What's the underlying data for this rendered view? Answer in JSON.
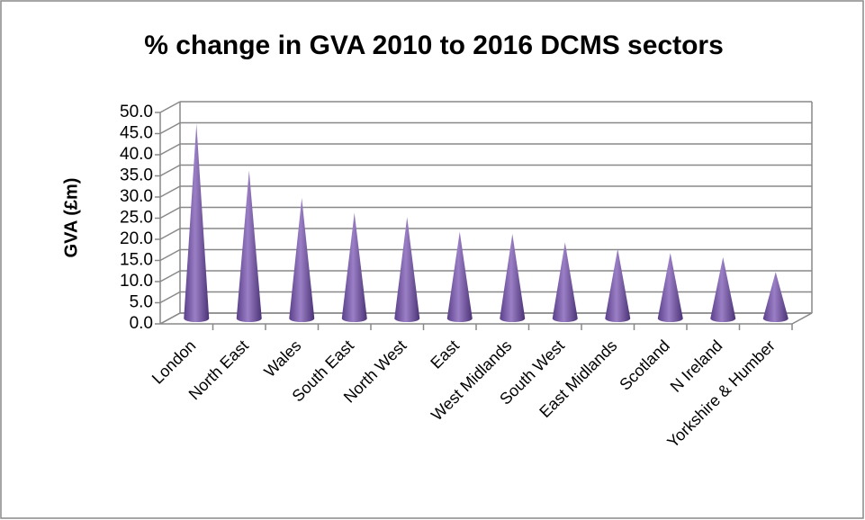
{
  "chart_data": {
    "type": "cone",
    "title": "% change in GVA 2010 to 2016 DCMS sectors",
    "y_label": "GVA (£m)",
    "categories": [
      "London",
      "North East",
      "Wales",
      "South East",
      "North West",
      "East",
      "West Midlands",
      "South West",
      "East Midlands",
      "Scotland",
      "N Ireland",
      "Yorkshire & Humber"
    ],
    "values": [
      46,
      35,
      28.5,
      25,
      24,
      20.5,
      20,
      18,
      16.5,
      15.5,
      14.5,
      11
    ],
    "color": "#9b7fc6",
    "ylim": [
      0,
      50
    ],
    "yticks": [
      {
        "value": 0,
        "label": "0.0"
      },
      {
        "value": 5,
        "label": "5.0"
      },
      {
        "value": 10,
        "label": "10.0"
      },
      {
        "value": 15,
        "label": "15.0"
      },
      {
        "value": 20,
        "label": "20.0"
      },
      {
        "value": 25,
        "label": "25.0"
      },
      {
        "value": 30,
        "label": "30.0"
      },
      {
        "value": 35,
        "label": "35.0"
      },
      {
        "value": 40,
        "label": "40.0"
      },
      {
        "value": 45,
        "label": "45.0"
      },
      {
        "value": 50,
        "label": "50.0"
      }
    ],
    "grid": true
  }
}
